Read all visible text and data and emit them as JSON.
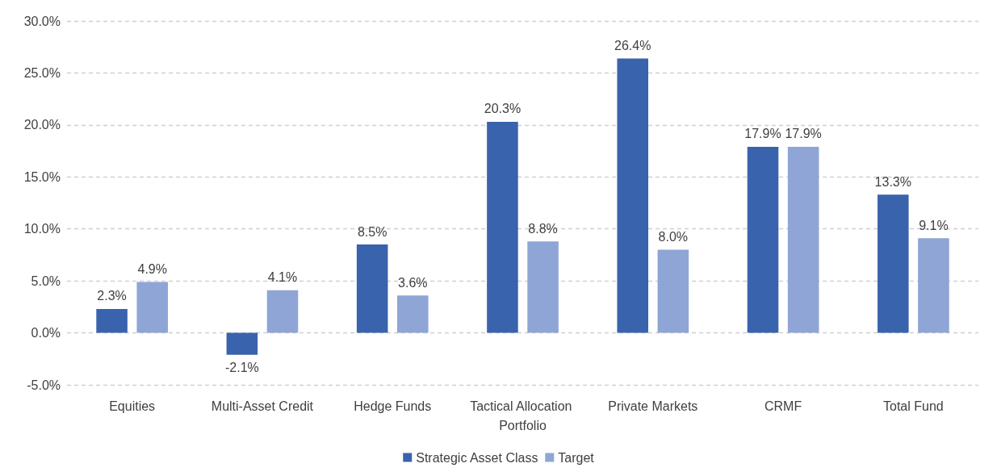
{
  "chart_data": {
    "type": "bar",
    "categories": [
      "Equities",
      "Multi-Asset Credit",
      "Hedge Funds",
      "Tactical Allocation Portfolio",
      "Private Markets",
      "CRMF",
      "Total Fund"
    ],
    "series": [
      {
        "name": "Strategic Asset Class",
        "color": "#3a63ad",
        "values": [
          2.3,
          -2.1,
          8.5,
          20.3,
          26.4,
          17.9,
          13.3
        ],
        "value_labels": [
          "2.3%",
          "-2.1%",
          "8.5%",
          "20.3%",
          "26.4%",
          "17.9%",
          "13.3%"
        ]
      },
      {
        "name": "Target",
        "color": "#8fa5d6",
        "values": [
          4.9,
          4.1,
          3.6,
          8.8,
          8.0,
          17.9,
          9.1
        ],
        "value_labels": [
          "4.9%",
          "4.1%",
          "3.6%",
          "8.8%",
          "8.0%",
          "17.9%",
          "9.1%"
        ]
      }
    ],
    "ylim": [
      -5,
      30
    ],
    "yticks": [
      {
        "value": -5,
        "label": "-5.0%"
      },
      {
        "value": 0,
        "label": "0.0%"
      },
      {
        "value": 5,
        "label": "5.0%"
      },
      {
        "value": 10,
        "label": "10.0%"
      },
      {
        "value": 15,
        "label": "15.0%"
      },
      {
        "value": 20,
        "label": "20.0%"
      },
      {
        "value": 25,
        "label": "25.0%"
      },
      {
        "value": 30,
        "label": "30.0%"
      }
    ],
    "grid": "y",
    "legend": "bottom"
  }
}
